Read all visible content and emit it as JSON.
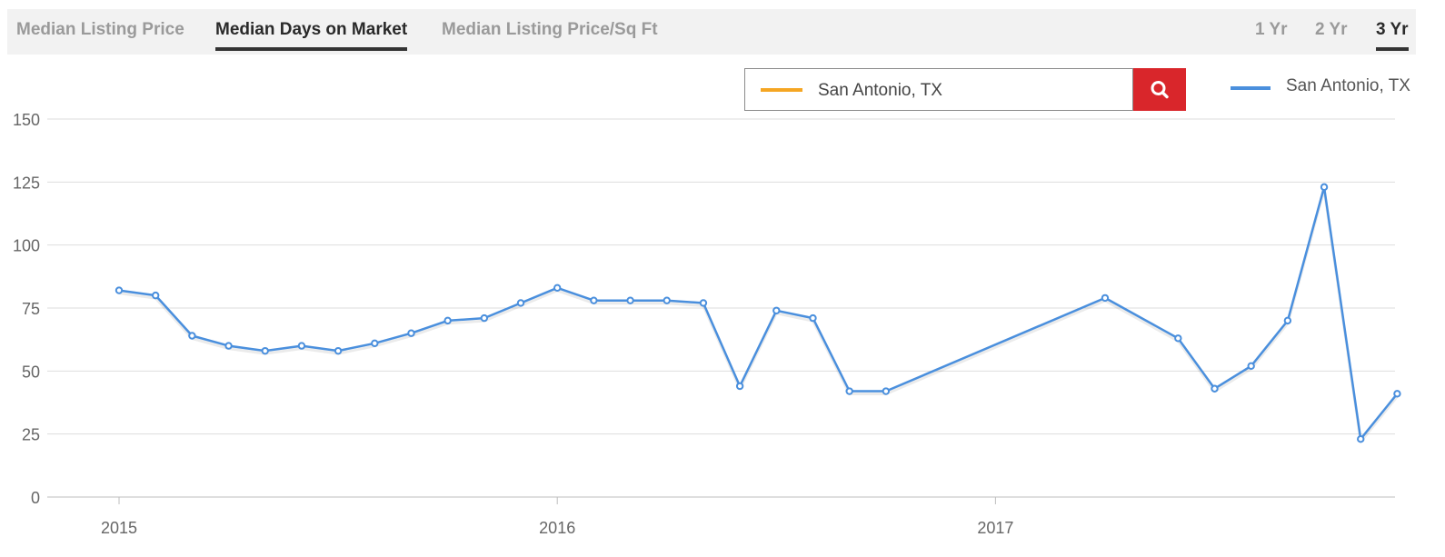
{
  "tabs": [
    {
      "label": "Median Listing Price",
      "active": false
    },
    {
      "label": "Median Days on Market",
      "active": true
    },
    {
      "label": "Median Listing Price/Sq Ft",
      "active": false
    }
  ],
  "ranges": [
    {
      "label": "1 Yr",
      "active": false
    },
    {
      "label": "2 Yr",
      "active": false
    },
    {
      "label": "3 Yr",
      "active": true
    }
  ],
  "search": {
    "value": "San Antonio, TX",
    "swatch_color": "#f5a623",
    "button_icon": "search-icon",
    "button_color": "#d9262b"
  },
  "legend": {
    "label": "San Antonio, TX",
    "color": "#4a8fdd"
  },
  "chart_data": {
    "type": "line",
    "title": "",
    "xlabel": "",
    "ylabel": "",
    "ylim": [
      0,
      150
    ],
    "y_ticks": [
      "0",
      "25",
      "50",
      "75",
      "100",
      "125",
      "150"
    ],
    "x_ticks": [
      "2015",
      "2016",
      "2017"
    ],
    "grid": true,
    "legend_position": "top-right",
    "series": [
      {
        "name": "San Antonio, TX",
        "color": "#4a8fdd",
        "points": [
          {
            "x": "2015-01",
            "y": 82
          },
          {
            "x": "2015-02",
            "y": 80
          },
          {
            "x": "2015-03",
            "y": 64
          },
          {
            "x": "2015-04",
            "y": 60
          },
          {
            "x": "2015-05",
            "y": 58
          },
          {
            "x": "2015-06",
            "y": 60
          },
          {
            "x": "2015-07",
            "y": 58
          },
          {
            "x": "2015-08",
            "y": 61
          },
          {
            "x": "2015-09",
            "y": 65
          },
          {
            "x": "2015-10",
            "y": 70
          },
          {
            "x": "2015-11",
            "y": 71
          },
          {
            "x": "2015-12",
            "y": 77
          },
          {
            "x": "2016-01",
            "y": 83
          },
          {
            "x": "2016-02",
            "y": 78
          },
          {
            "x": "2016-03",
            "y": 78
          },
          {
            "x": "2016-04",
            "y": 78
          },
          {
            "x": "2016-05",
            "y": 77
          },
          {
            "x": "2016-06",
            "y": 44
          },
          {
            "x": "2016-07",
            "y": 74
          },
          {
            "x": "2016-08",
            "y": 71
          },
          {
            "x": "2016-09",
            "y": 42
          },
          {
            "x": "2016-10",
            "y": 42
          },
          {
            "x": "2017-04",
            "y": 79
          },
          {
            "x": "2017-06",
            "y": 63
          },
          {
            "x": "2017-07",
            "y": 43
          },
          {
            "x": "2017-08",
            "y": 52
          },
          {
            "x": "2017-09",
            "y": 70
          },
          {
            "x": "2017-10",
            "y": 123
          },
          {
            "x": "2017-11",
            "y": 23
          },
          {
            "x": "2017-12",
            "y": 41
          }
        ]
      }
    ]
  }
}
